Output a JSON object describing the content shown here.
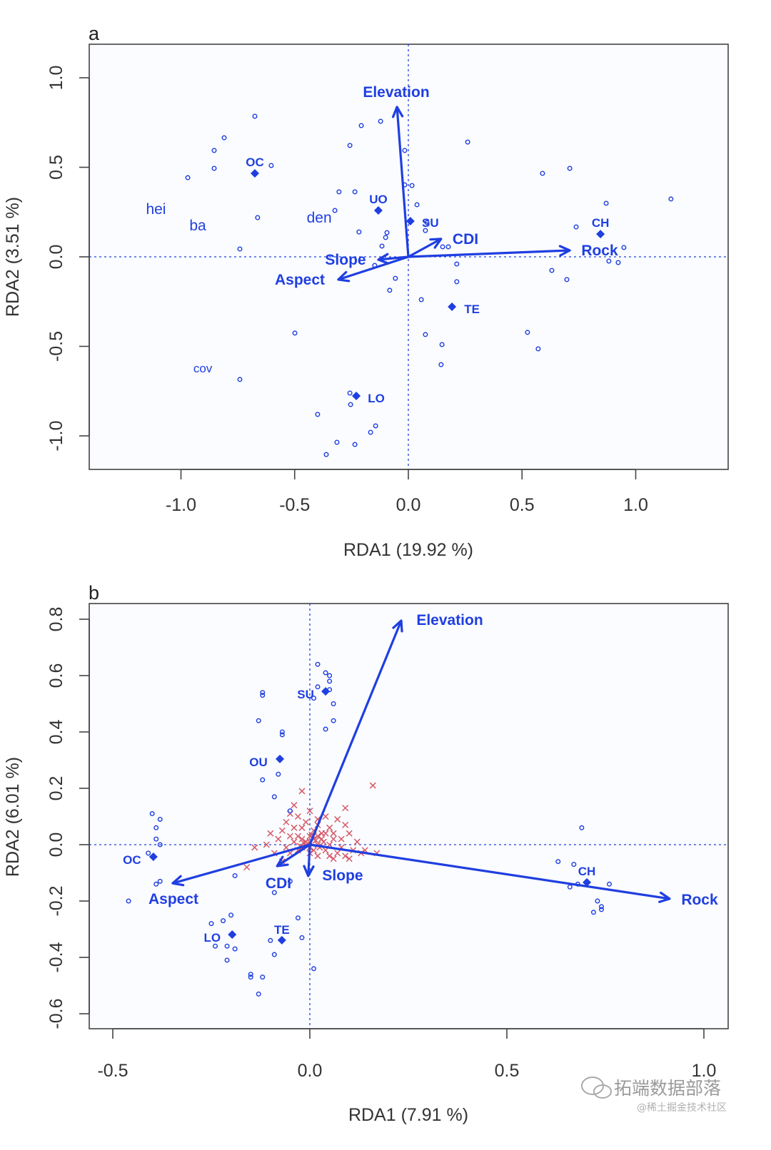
{
  "colors": {
    "site": "#1f3fe0",
    "species_cross": "#d65a68",
    "axis": "#333333"
  },
  "watermark": {
    "brand": "拓端数据部落",
    "source": "@稀土掘金技术社区"
  },
  "chart_data": [
    {
      "type": "scatter",
      "panel": "a",
      "xlabel": "RDA1 (19.92 %)",
      "ylabel": "RDA2 (3.51 %)",
      "xlim": [
        -1.4,
        1.4
      ],
      "ylim": [
        -1.18,
        1.19
      ],
      "xticks": [
        -1.0,
        -0.5,
        0.0,
        0.5,
        1.0
      ],
      "xtick_labels": [
        "-1.0",
        "-0.5",
        "0.0",
        "0.5",
        "1.0"
      ],
      "yticks": [
        -1.0,
        -0.5,
        0.0,
        0.5,
        1.0
      ],
      "ytick_labels": [
        "-1.0",
        "-0.5",
        "0.0",
        "0.5",
        "1.0"
      ],
      "grid": false,
      "sites": [
        [
          -0.675,
          0.785
        ],
        [
          -0.81,
          0.665
        ],
        [
          -0.854,
          0.594
        ],
        [
          -0.854,
          0.494
        ],
        [
          -0.97,
          0.442
        ],
        [
          -0.603,
          0.51
        ],
        [
          -0.663,
          0.219
        ],
        [
          -0.741,
          0.044
        ],
        [
          -0.207,
          0.733
        ],
        [
          -0.122,
          0.757
        ],
        [
          -0.257,
          0.622
        ],
        [
          -0.016,
          0.594
        ],
        [
          -0.305,
          0.363
        ],
        [
          -0.235,
          0.363
        ],
        [
          -0.323,
          0.259
        ],
        [
          -0.217,
          0.139
        ],
        [
          -0.094,
          0.135
        ],
        [
          -0.1,
          0.108
        ],
        [
          -0.116,
          0.06
        ],
        [
          -0.016,
          0.402
        ],
        [
          0.016,
          0.398
        ],
        [
          0.038,
          0.291
        ],
        [
          0.082,
          0.191
        ],
        [
          0.075,
          0.147
        ],
        [
          0.151,
          0.056
        ],
        [
          0.176,
          0.056
        ],
        [
          0.213,
          -0.04
        ],
        [
          -0.057,
          -0.12
        ],
        [
          -0.082,
          -0.187
        ],
        [
          0.213,
          -0.139
        ],
        [
          0.057,
          -0.239
        ],
        [
          0.075,
          -0.434
        ],
        [
          0.148,
          -0.49
        ],
        [
          0.144,
          -0.602
        ],
        [
          0.261,
          0.641
        ],
        [
          0.59,
          0.466
        ],
        [
          0.71,
          0.494
        ],
        [
          0.87,
          0.299
        ],
        [
          0.738,
          0.167
        ],
        [
          1.155,
          0.323
        ],
        [
          0.948,
          0.052
        ],
        [
          0.882,
          -0.024
        ],
        [
          0.923,
          -0.032
        ],
        [
          0.631,
          -0.076
        ],
        [
          0.697,
          -0.127
        ],
        [
          0.524,
          -0.422
        ],
        [
          0.571,
          -0.514
        ],
        [
          -0.499,
          -0.426
        ],
        [
          -0.741,
          -0.685
        ],
        [
          -0.257,
          -0.761
        ],
        [
          -0.254,
          -0.825
        ],
        [
          -0.399,
          -0.88
        ],
        [
          -0.144,
          -0.944
        ],
        [
          -0.166,
          -0.98
        ],
        [
          -0.314,
          -1.036
        ],
        [
          -0.235,
          -1.048
        ],
        [
          -0.361,
          -1.104
        ],
        [
          -0.148,
          -0.048
        ]
      ],
      "centroids": [
        {
          "label": "OC",
          "x": -0.675,
          "y": 0.466
        },
        {
          "label": "UO",
          "x": -0.132,
          "y": 0.259
        },
        {
          "label": "SU",
          "x": 0.009,
          "y": 0.199
        },
        {
          "label": "CH",
          "x": 0.845,
          "y": 0.127
        },
        {
          "label": "TE",
          "x": 0.192,
          "y": -0.279
        },
        {
          "label": "LO",
          "x": -0.229,
          "y": -0.777
        }
      ],
      "arrows": [
        {
          "label": "Elevation",
          "x": -0.05,
          "y": 0.837
        },
        {
          "label": "CDI",
          "x": 0.144,
          "y": 0.1
        },
        {
          "label": "Rock",
          "x": 0.71,
          "y": 0.036
        },
        {
          "label": "Slope",
          "x": -0.132,
          "y": -0.016
        },
        {
          "label": "Aspect",
          "x": -0.308,
          "y": -0.127
        }
      ],
      "species": [
        {
          "label": "hei",
          "x": -1.11,
          "y": 0.267
        },
        {
          "label": "ba",
          "x": -0.926,
          "y": 0.175
        },
        {
          "label": "den",
          "x": -0.392,
          "y": 0.219
        },
        {
          "label": "cov",
          "x": -0.904,
          "y": -0.618
        }
      ]
    },
    {
      "type": "scatter",
      "panel": "b",
      "xlabel": "RDA1 (7.91 %)",
      "ylabel": "RDA2 (6.01 %)",
      "xlim": [
        -0.56,
        1.06
      ],
      "ylim": [
        -0.65,
        0.85
      ],
      "xticks": [
        -0.5,
        0.0,
        0.5,
        1.0
      ],
      "xtick_labels": [
        "-0.5",
        "0.0",
        "0.5",
        "1.0"
      ],
      "yticks": [
        -0.6,
        -0.4,
        -0.2,
        0.0,
        0.2,
        0.4,
        0.6,
        0.8
      ],
      "ytick_labels": [
        "-0.6",
        "-0.4",
        "-0.2",
        "0.0",
        "0.2",
        "0.4",
        "0.6",
        "0.8"
      ],
      "grid": false,
      "sites": [
        [
          0.02,
          0.64
        ],
        [
          0.04,
          0.61
        ],
        [
          0.05,
          0.6
        ],
        [
          0.05,
          0.58
        ],
        [
          0.02,
          0.56
        ],
        [
          0.05,
          0.55
        ],
        [
          0.01,
          0.52
        ],
        [
          0.06,
          0.5
        ],
        [
          0.06,
          0.44
        ],
        [
          0.04,
          0.41
        ],
        [
          -0.12,
          0.54
        ],
        [
          -0.12,
          0.53
        ],
        [
          -0.13,
          0.44
        ],
        [
          -0.07,
          0.4
        ],
        [
          -0.07,
          0.39
        ],
        [
          -0.08,
          0.25
        ],
        [
          -0.12,
          0.23
        ],
        [
          -0.09,
          0.17
        ],
        [
          -0.05,
          0.12
        ],
        [
          -0.4,
          0.11
        ],
        [
          -0.38,
          0.09
        ],
        [
          -0.39,
          0.06
        ],
        [
          -0.39,
          0.02
        ],
        [
          -0.38,
          0.0
        ],
        [
          -0.41,
          -0.03
        ],
        [
          -0.38,
          -0.13
        ],
        [
          -0.39,
          -0.14
        ],
        [
          -0.46,
          -0.2
        ],
        [
          -0.19,
          -0.11
        ],
        [
          -0.05,
          -0.13
        ],
        [
          -0.09,
          -0.17
        ],
        [
          -0.2,
          -0.25
        ],
        [
          -0.22,
          -0.27
        ],
        [
          -0.25,
          -0.28
        ],
        [
          -0.24,
          -0.36
        ],
        [
          -0.21,
          -0.36
        ],
        [
          -0.19,
          -0.37
        ],
        [
          -0.21,
          -0.41
        ],
        [
          -0.03,
          -0.26
        ],
        [
          -0.02,
          -0.33
        ],
        [
          -0.1,
          -0.34
        ],
        [
          -0.09,
          -0.39
        ],
        [
          0.01,
          -0.44
        ],
        [
          -0.15,
          -0.46
        ],
        [
          -0.15,
          -0.47
        ],
        [
          -0.12,
          -0.47
        ],
        [
          -0.13,
          -0.53
        ],
        [
          0.69,
          0.06
        ],
        [
          0.63,
          -0.06
        ],
        [
          0.67,
          -0.07
        ],
        [
          0.68,
          -0.14
        ],
        [
          0.66,
          -0.15
        ],
        [
          0.76,
          -0.14
        ],
        [
          0.73,
          -0.2
        ],
        [
          0.74,
          -0.23
        ],
        [
          0.72,
          -0.24
        ],
        [
          0.74,
          -0.22
        ]
      ],
      "species_points": [
        [
          0.16,
          0.21
        ],
        [
          -0.02,
          0.19
        ],
        [
          -0.16,
          -0.08
        ],
        [
          -0.14,
          -0.01
        ],
        [
          -0.1,
          0.04
        ],
        [
          0.09,
          0.13
        ],
        [
          0.17,
          -0.03
        ],
        [
          -0.04,
          0.14
        ],
        [
          0.0,
          0.12
        ],
        [
          -0.03,
          0.1
        ],
        [
          0.02,
          0.09
        ],
        [
          0.07,
          0.09
        ],
        [
          -0.06,
          0.08
        ],
        [
          0.05,
          0.06
        ],
        [
          0.09,
          0.07
        ],
        [
          -0.07,
          0.05
        ],
        [
          -0.02,
          0.06
        ],
        [
          0.01,
          0.05
        ],
        [
          0.04,
          0.04
        ],
        [
          0.1,
          0.04
        ],
        [
          -0.05,
          0.03
        ],
        [
          -0.03,
          0.03
        ],
        [
          0.0,
          0.03
        ],
        [
          0.03,
          0.02
        ],
        [
          0.06,
          0.02
        ],
        [
          0.12,
          0.01
        ],
        [
          -0.08,
          0.02
        ],
        [
          -0.04,
          0.01
        ],
        [
          -0.01,
          0.01
        ],
        [
          0.02,
          0.0
        ],
        [
          0.05,
          0.0
        ],
        [
          0.08,
          -0.01
        ],
        [
          0.11,
          -0.02
        ],
        [
          0.14,
          -0.02
        ],
        [
          -0.06,
          -0.01
        ],
        [
          -0.02,
          -0.01
        ],
        [
          0.01,
          -0.02
        ],
        [
          0.04,
          -0.02
        ],
        [
          0.07,
          -0.03
        ],
        [
          0.09,
          -0.04
        ],
        [
          -0.05,
          -0.03
        ],
        [
          -0.03,
          -0.02
        ],
        [
          0.0,
          -0.03
        ],
        [
          0.02,
          -0.04
        ],
        [
          0.05,
          -0.04
        ],
        [
          0.13,
          -0.03
        ],
        [
          -0.01,
          0.0
        ],
        [
          0.0,
          0.01
        ],
        [
          0.01,
          0.02
        ],
        [
          -0.02,
          0.02
        ],
        [
          0.03,
          0.04
        ],
        [
          0.02,
          0.07
        ],
        [
          -0.01,
          0.08
        ],
        [
          -0.04,
          0.06
        ],
        [
          0.06,
          0.04
        ],
        [
          0.08,
          0.02
        ],
        [
          -0.09,
          -0.03
        ],
        [
          -0.11,
          0.0
        ],
        [
          0.04,
          0.1
        ],
        [
          -0.05,
          0.11
        ],
        [
          0.0,
          -0.01
        ],
        [
          0.015,
          0.015
        ],
        [
          -0.015,
          0.005
        ],
        [
          0.025,
          -0.01
        ],
        [
          0.035,
          0.01
        ],
        [
          -0.025,
          -0.005
        ],
        [
          0.1,
          -0.05
        ],
        [
          0.06,
          -0.05
        ],
        [
          -0.07,
          -0.06
        ],
        [
          0.02,
          0.03
        ],
        [
          0.005,
          0.035
        ]
      ],
      "centroids": [
        {
          "label": "SU",
          "x": 0.04,
          "y": 0.544
        },
        {
          "label": "OU",
          "x": -0.076,
          "y": 0.304
        },
        {
          "label": "OC",
          "x": -0.397,
          "y": -0.043
        },
        {
          "label": "LO",
          "x": -0.197,
          "y": -0.319
        },
        {
          "label": "TE",
          "x": -0.071,
          "y": -0.339
        },
        {
          "label": "CH",
          "x": 0.703,
          "y": -0.134
        }
      ],
      "arrows": [
        {
          "label": "Elevation",
          "x": 0.232,
          "y": 0.795
        },
        {
          "label": "Rock",
          "x": 0.913,
          "y": -0.192
        },
        {
          "label": "Aspect",
          "x": -0.348,
          "y": -0.137
        },
        {
          "label": "CDI",
          "x": -0.083,
          "y": -0.076
        },
        {
          "label": "Slope",
          "x": -0.004,
          "y": -0.111
        }
      ]
    }
  ]
}
